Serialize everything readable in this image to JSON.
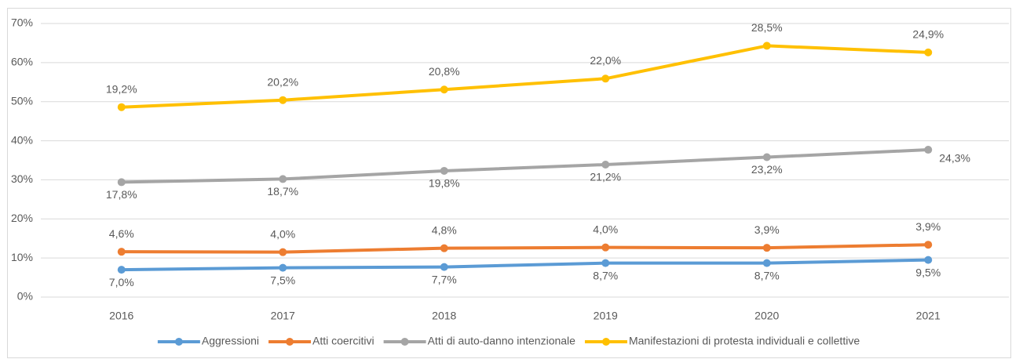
{
  "chart_data": {
    "type": "line",
    "stacked": true,
    "categories": [
      "2016",
      "2017",
      "2018",
      "2019",
      "2020",
      "2021"
    ],
    "series": [
      {
        "name": "Aggressioni",
        "color": "#5b9bd5",
        "values": [
          7.0,
          7.5,
          7.7,
          8.7,
          8.7,
          9.5
        ],
        "value_labels": [
          "7,0%",
          "7,5%",
          "7,7%",
          "8,7%",
          "8,7%",
          "9,5%"
        ]
      },
      {
        "name": "Atti coercitivi",
        "color": "#ed7d31",
        "values": [
          4.6,
          4.0,
          4.8,
          4.0,
          3.9,
          3.9
        ],
        "value_labels": [
          "4,6%",
          "4,0%",
          "4,8%",
          "4,0%",
          "3,9%",
          "3,9%"
        ]
      },
      {
        "name": "Atti di auto-danno intenzionale",
        "color": "#a5a5a5",
        "values": [
          17.8,
          18.7,
          19.8,
          21.2,
          23.2,
          24.3
        ],
        "value_labels": [
          "17,8%",
          "18,7%",
          "19,8%",
          "21,2%",
          "23,2%",
          "24,3%"
        ]
      },
      {
        "name": "Manifestazioni di protesta individuali e collettive",
        "color": "#ffc000",
        "values": [
          19.2,
          20.2,
          20.8,
          22.0,
          28.5,
          24.9
        ],
        "value_labels": [
          "19,2%",
          "20,2%",
          "20,8%",
          "22,0%",
          "28,5%",
          "24,9%"
        ]
      }
    ],
    "ylim": [
      0,
      70
    ],
    "yticks": [
      {
        "value": 0,
        "label": "0%"
      },
      {
        "value": 10,
        "label": "10%"
      },
      {
        "value": 20,
        "label": "20%"
      },
      {
        "value": 30,
        "label": "30%"
      },
      {
        "value": 40,
        "label": "40%"
      },
      {
        "value": 50,
        "label": "50%"
      },
      {
        "value": 60,
        "label": "60%"
      },
      {
        "value": 70,
        "label": "70%"
      }
    ],
    "grid": true,
    "legend": "bottom"
  }
}
